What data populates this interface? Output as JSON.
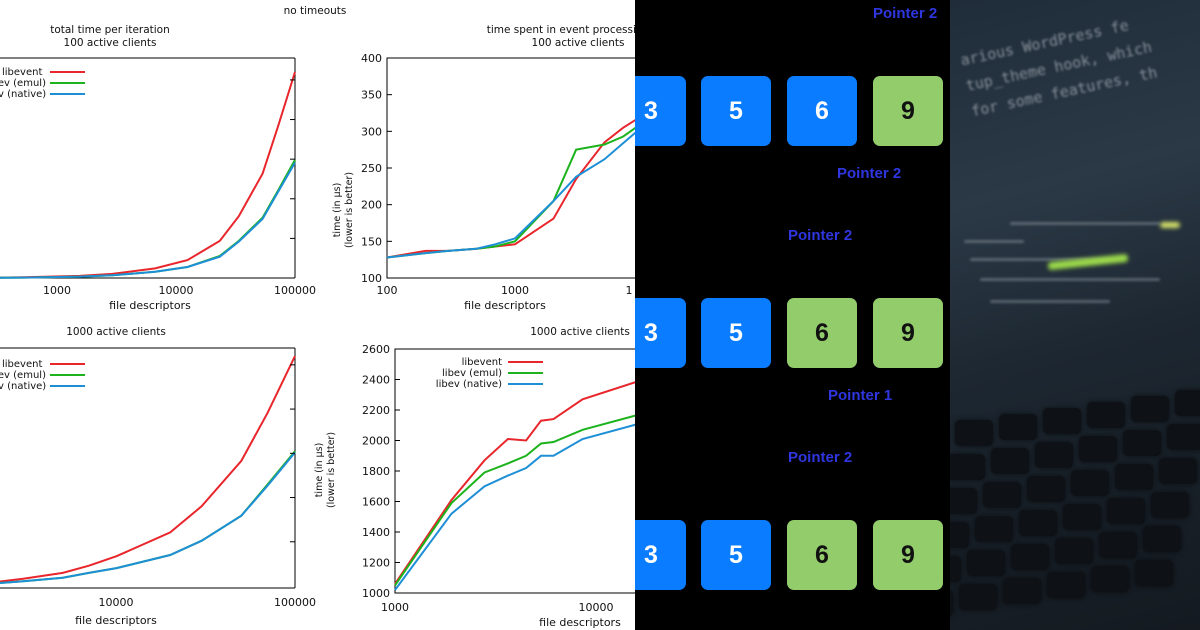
{
  "charts": {
    "header": "no timeouts",
    "top_left": {
      "title_lines": [
        "total time per iteration",
        "100 active clients"
      ],
      "xlabel": "file descriptors",
      "x_tick_labels": [
        "1000",
        "10000",
        "100000"
      ],
      "legend": [
        "libevent",
        "libev (emul)",
        "libev (native)"
      ]
    },
    "top_right": {
      "title_lines": [
        "time spent in event processing",
        "100 active clients"
      ],
      "xlabel": "file descriptors",
      "ylabel_lines": [
        "time (in µs)",
        "(lower is better)"
      ],
      "y_tick_labels": [
        "100",
        "150",
        "200",
        "250",
        "300",
        "350",
        "400"
      ],
      "x_tick_labels": [
        "100",
        "1000",
        "1"
      ]
    },
    "bottom_left": {
      "title_lines": [
        "1000 active clients"
      ],
      "xlabel": "file descriptors",
      "x_tick_labels": [
        "10000",
        "100000"
      ],
      "legend": [
        "libevent",
        "libev (emul)",
        "libev (native)"
      ]
    },
    "bottom_right": {
      "title_lines": [
        "1000 active clients"
      ],
      "xlabel": "file descriptors",
      "ylabel_lines": [
        "time (in µs)",
        "(lower is better)"
      ],
      "y_tick_labels": [
        "1000",
        "1200",
        "1400",
        "1600",
        "1800",
        "2000",
        "2200",
        "2400",
        "2600"
      ],
      "x_tick_labels": [
        "1000",
        "10000"
      ],
      "legend": [
        "libevent",
        "libev (emul)",
        "libev (native)"
      ]
    },
    "colors": {
      "libevent": "#e8262c",
      "libev_emul": "#1cb31c",
      "libev_native": "#1e8fd6"
    }
  },
  "chart_data": [
    {
      "type": "line",
      "title": "total time per iteration 100 active clients",
      "xlabel": "file descriptors",
      "xscale": "log",
      "x": [
        100,
        300,
        1000,
        2000,
        5000,
        10000,
        20000,
        30000,
        50000,
        70000,
        100000
      ],
      "series": [
        {
          "name": "libevent",
          "values": [
            0.0,
            0.5,
            1.5,
            3.0,
            7.0,
            13.0,
            27.0,
            45.0,
            76.0,
            111.0,
            150.0
          ]
        },
        {
          "name": "libev (emul)",
          "values": [
            0.0,
            0.3,
            1.0,
            2.0,
            4.5,
            8.0,
            16.0,
            27.0,
            44.0,
            64.0,
            86.0
          ]
        },
        {
          "name": "libev (native)",
          "values": [
            0.0,
            0.3,
            1.0,
            2.0,
            4.5,
            8.0,
            15.5,
            26.5,
            43.0,
            63.0,
            84.0
          ]
        }
      ]
    },
    {
      "type": "line",
      "title": "time spent in event processing 100 active clients",
      "xlabel": "file descriptors",
      "ylabel": "time (in µs) (lower is better)",
      "xscale": "log",
      "ylim": [
        100,
        400
      ],
      "x": [
        100,
        200,
        300,
        500,
        700,
        1000,
        2000,
        3000,
        5000,
        7000,
        10000
      ],
      "series": [
        {
          "name": "libevent",
          "values": [
            128,
            137,
            137,
            140,
            143,
            146,
            181,
            235,
            285,
            305,
            322
          ]
        },
        {
          "name": "libev (emul)",
          "values": [
            128,
            134,
            137,
            140,
            143,
            150,
            205,
            275,
            282,
            293,
            312
          ]
        },
        {
          "name": "libev (native)",
          "values": [
            128,
            134,
            137,
            140,
            146,
            154,
            205,
            238,
            262,
            284,
            307
          ]
        }
      ]
    },
    {
      "type": "line",
      "title": "1000 active clients",
      "xlabel": "file descriptors",
      "xscale": "log",
      "x": [
        1000,
        2000,
        3000,
        5000,
        7000,
        10000,
        20000,
        30000,
        50000,
        70000,
        100000
      ],
      "series": [
        {
          "name": "libevent",
          "values": [
            0.0,
            3.0,
            6.0,
            11.0,
            17.0,
            25.0,
            45.0,
            67.0,
            105.0,
            145.0,
            193.0
          ]
        },
        {
          "name": "libev (emul)",
          "values": [
            0.0,
            2.0,
            4.0,
            7.0,
            11.0,
            15.0,
            26.0,
            38.0,
            59.0,
            85.0,
            113.0
          ]
        },
        {
          "name": "libev (native)",
          "values": [
            0.0,
            2.0,
            4.0,
            7.0,
            11.0,
            15.0,
            26.0,
            38.0,
            59.0,
            84.0,
            112.0
          ]
        }
      ]
    },
    {
      "type": "line",
      "title": "1000 active clients",
      "xlabel": "file descriptors",
      "ylabel": "time (in µs) (lower is better)",
      "xscale": "log",
      "ylim": [
        1000,
        2600
      ],
      "x": [
        1000,
        2000,
        3000,
        4000,
        5000,
        6000,
        7000,
        10000,
        20000
      ],
      "series": [
        {
          "name": "libevent",
          "values": [
            1060,
            1610,
            1870,
            2010,
            2000,
            2130,
            2140,
            2270,
            2390
          ]
        },
        {
          "name": "libev (emul)",
          "values": [
            1050,
            1590,
            1790,
            1850,
            1900,
            1980,
            1990,
            2070,
            2170
          ]
        },
        {
          "name": "libev (native)",
          "values": [
            1020,
            1520,
            1700,
            1770,
            1820,
            1900,
            1900,
            2010,
            2110
          ]
        }
      ]
    }
  ],
  "pointers": {
    "labels": [
      "Pointer 2",
      "Pointer 2",
      "Pointer 2",
      "Pointer 1",
      "Pointer 2"
    ],
    "rows": [
      [
        {
          "v": "3",
          "c": "blue"
        },
        {
          "v": "5",
          "c": "blue"
        },
        {
          "v": "6",
          "c": "blue"
        },
        {
          "v": "9",
          "c": "green"
        }
      ],
      [
        {
          "v": "3",
          "c": "blue"
        },
        {
          "v": "5",
          "c": "blue"
        },
        {
          "v": "6",
          "c": "green"
        },
        {
          "v": "9",
          "c": "green"
        }
      ],
      [
        {
          "v": "3",
          "c": "blue"
        },
        {
          "v": "5",
          "c": "blue"
        },
        {
          "v": "6",
          "c": "green"
        },
        {
          "v": "9",
          "c": "green"
        }
      ]
    ]
  },
  "photo": {
    "text_lines": [
      "arious WordPress fe",
      "tup_theme hook, which",
      "for some features, th"
    ]
  }
}
